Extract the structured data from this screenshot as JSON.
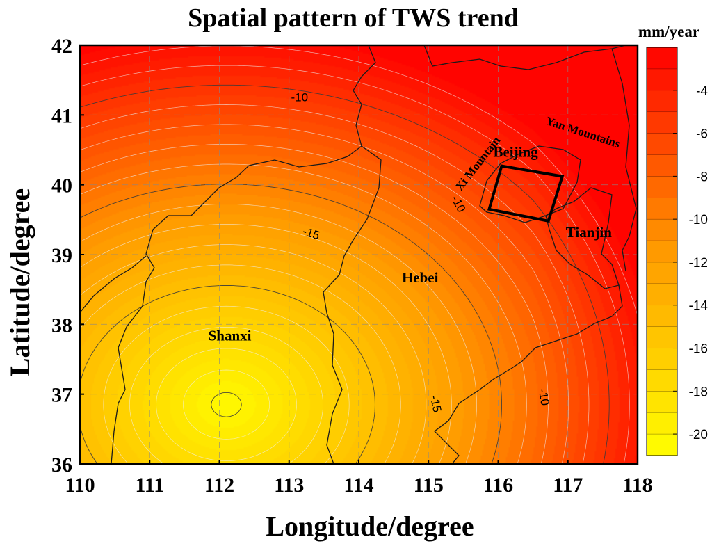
{
  "chart_data": {
    "type": "heatmap",
    "title": "Spatial pattern of TWS trend",
    "xlabel": "Longitude/degree",
    "ylabel": "Latitude/degree",
    "xlim": [
      110,
      118
    ],
    "ylim": [
      36,
      42
    ],
    "x_ticks": [
      "110",
      "111",
      "112",
      "113",
      "114",
      "115",
      "116",
      "117",
      "118"
    ],
    "y_ticks": [
      "36",
      "37",
      "38",
      "39",
      "40",
      "41",
      "42"
    ],
    "grid": true,
    "colorbar": {
      "unit": "mm/year",
      "range": [
        -21,
        -2
      ],
      "ticks": [
        "-4",
        "-6",
        "-8",
        "-10",
        "-12",
        "-14",
        "-16",
        "-18",
        "-20"
      ],
      "colors": {
        "low": "#ffff00",
        "mid": "#ff9a00",
        "high": "#ff0000"
      }
    },
    "field": {
      "minimum_center": {
        "lon": 112.1,
        "lat": 36.85,
        "value": -20.5
      },
      "east_edge_value": -2.5
    },
    "contour_labels": [
      {
        "text": "-10",
        "lon": 113.15,
        "lat": 41.2
      },
      {
        "text": "-15",
        "lon": 113.3,
        "lat": 39.25
      },
      {
        "text": "-10",
        "lon": 115.38,
        "lat": 39.7
      },
      {
        "text": "-15",
        "lon": 115.05,
        "lat": 36.85
      },
      {
        "text": "-10",
        "lon": 116.6,
        "lat": 36.95
      }
    ],
    "annotations": {
      "regions": [
        {
          "name": "Shanxi",
          "lon": 112.15,
          "lat": 37.77
        },
        {
          "name": "Hebei",
          "lon": 114.88,
          "lat": 38.6
        },
        {
          "name": "Beijing",
          "lon": 116.25,
          "lat": 40.4
        },
        {
          "name": "Tianjin",
          "lon": 117.3,
          "lat": 39.25
        }
      ],
      "mountains": [
        {
          "name": "Xi Mountain",
          "lon": 115.75,
          "lat": 40.27
        },
        {
          "name": "Yan Mountains",
          "lon": 117.2,
          "lat": 40.7
        }
      ],
      "study_box": [
        [
          116.05,
          40.27
        ],
        [
          116.92,
          40.12
        ],
        [
          116.72,
          39.48
        ],
        [
          115.87,
          39.65
        ]
      ]
    }
  }
}
